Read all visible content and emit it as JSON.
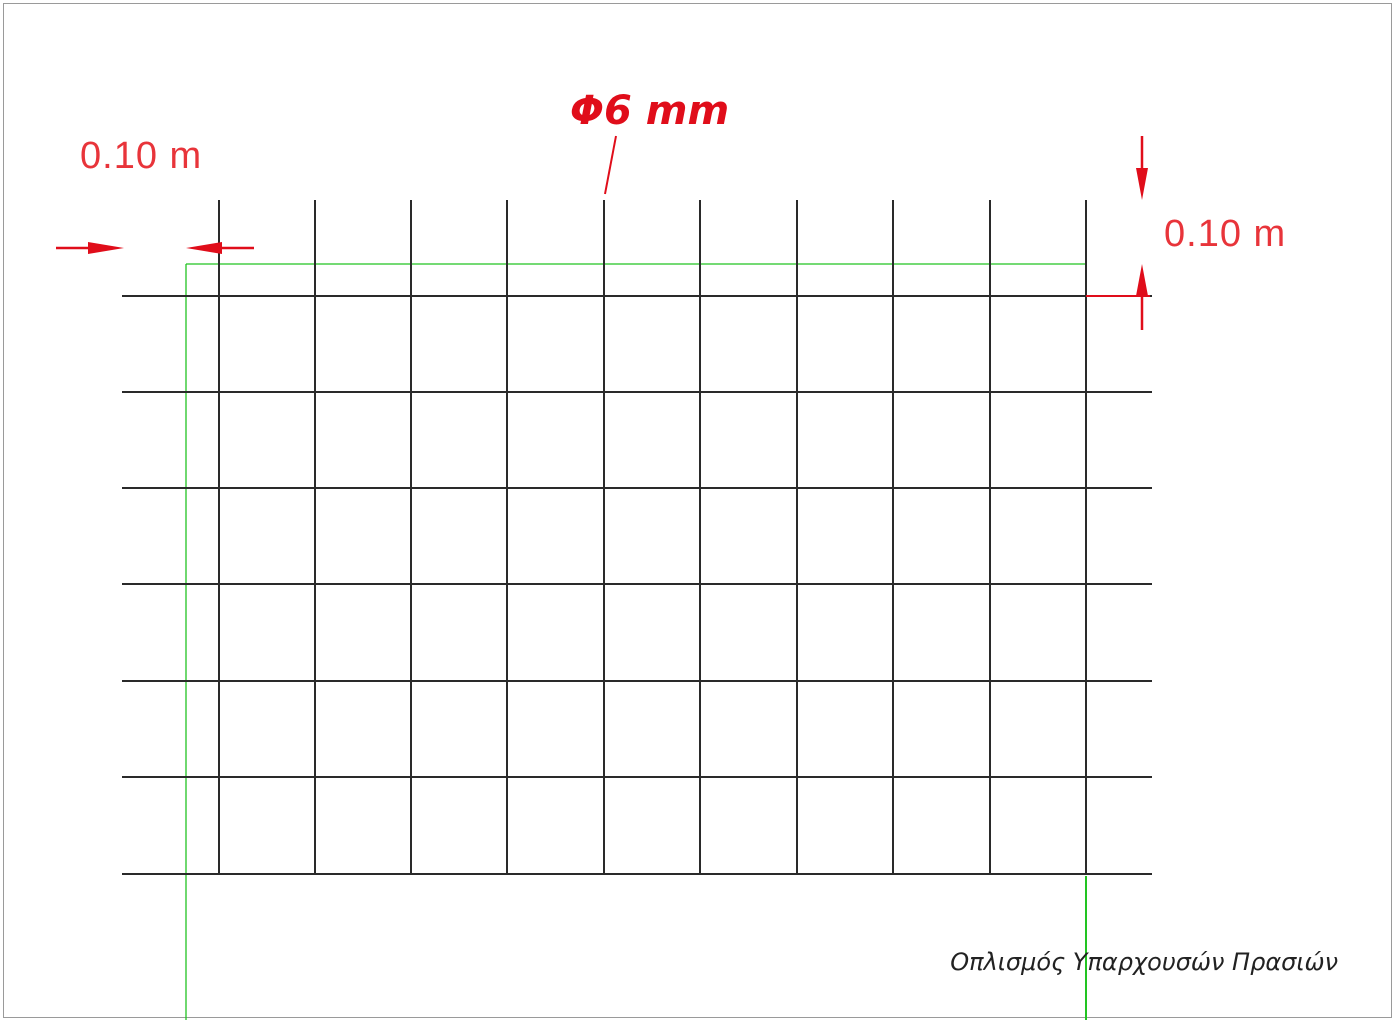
{
  "drawing": {
    "bar_label": "Φ6 mm",
    "dim_left": "0.10 m",
    "dim_right": "0.10 m",
    "caption": "Οπλισμός Υπαρχουσών Πρασιών",
    "colors": {
      "mesh": "#2a2a2a",
      "outline": "#22c422",
      "dimension": "#e00d1a",
      "text": "#222222"
    }
  }
}
